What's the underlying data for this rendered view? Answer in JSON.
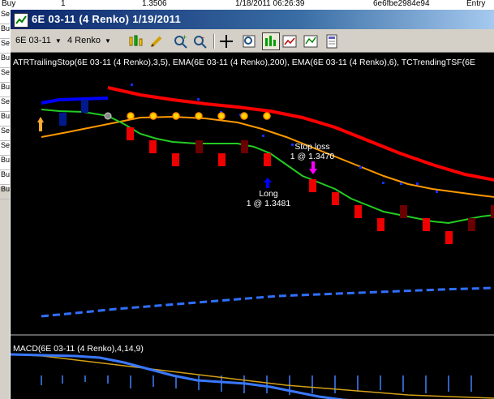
{
  "background_sheet": {
    "top_row": [
      "Buy",
      "1",
      "1.3506",
      "1/18/2011 06:26:39",
      "6e6fbe2984e94",
      "Entry"
    ],
    "row_labels": [
      "Se",
      "Bu",
      "Se",
      "Bu",
      "Se",
      "Bu",
      "Se",
      "Bu",
      "Se",
      "Se",
      "Bu",
      "Bu",
      "Bu"
    ]
  },
  "window": {
    "title": "6E 03-11  (4 Renko)  1/19/2011",
    "instrument_selector": "6E 03-11",
    "period_selector": "4 Renko"
  },
  "toolbar": {
    "icons": [
      "bar-style-icon",
      "pencil-icon",
      "zoom-in-icon",
      "zoom-out-icon",
      "crosshair-icon",
      "magnifier-icon",
      "chart-trader-icon",
      "strategies-icon",
      "data-box-icon"
    ]
  },
  "price_panel": {
    "indicator_label": "ATRTrailingStop(6E 03-11 (4 Renko),3,5), EMA(6E 03-11 (4 Renko),200), EMA(6E 03-11 (4 Renko),6), TCTrendingTSF(6E",
    "entry_label_1": "Long",
    "entry_label_2": "1 @ 1.3481",
    "exit_label_1": "Stop loss",
    "exit_label_2": "1 @ 1.3470",
    "colors": {
      "ema200": "#ff0000",
      "ema6": "#22cc22",
      "tsf": "#ff9900",
      "atr_stop_up": "#0000ff",
      "atr_stop_down": "#1060ff",
      "long_arrow": "#0000ff",
      "exit_arrow": "#ff00ff"
    }
  },
  "macd_panel": {
    "label": "MACD(6E 03-11 (4 Renko),4,14,9)",
    "colors": {
      "macd": "#3a78ff",
      "avg": "#d4a017",
      "diff": "#4080ff"
    }
  }
}
